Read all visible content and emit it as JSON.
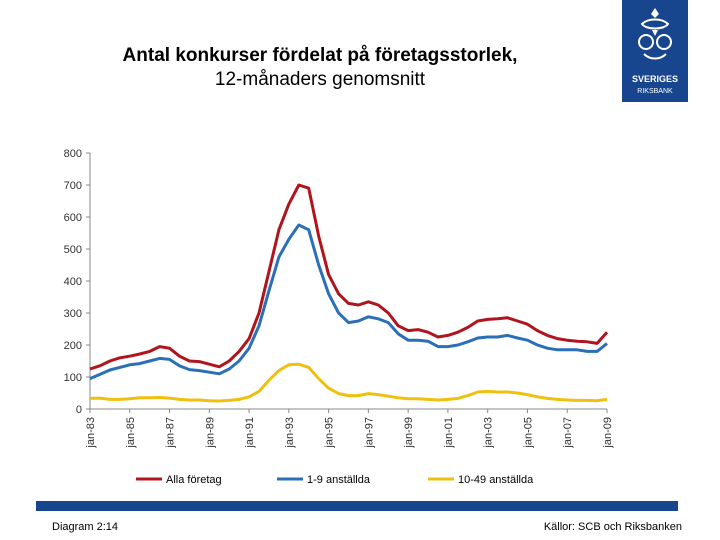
{
  "header": {
    "title": "Antal konkurser fördelat på företagsstorlek,",
    "subtitle": "12-månaders genomsnitt"
  },
  "logo": {
    "line1": "SVERIGES",
    "line2": "RIKSBANK"
  },
  "footer": {
    "left": "Diagram 2:14",
    "right": "Källor: SCB och Riksbanken"
  },
  "colors": {
    "brand": "#17468f"
  },
  "chart_data": {
    "type": "line",
    "x": [
      1983.0,
      1983.5,
      1984.0,
      1984.5,
      1985.0,
      1985.5,
      1986.0,
      1986.5,
      1987.0,
      1987.5,
      1988.0,
      1988.5,
      1989.0,
      1989.5,
      1990.0,
      1990.5,
      1991.0,
      1991.5,
      1992.0,
      1992.5,
      1993.0,
      1993.5,
      1994.0,
      1994.5,
      1995.0,
      1995.5,
      1996.0,
      1996.5,
      1997.0,
      1997.5,
      1998.0,
      1998.5,
      1999.0,
      1999.5,
      2000.0,
      2000.5,
      2001.0,
      2001.5,
      2002.0,
      2002.5,
      2003.0,
      2003.5,
      2004.0,
      2004.5,
      2005.0,
      2005.5,
      2006.0,
      2006.5,
      2007.0,
      2007.5,
      2008.0,
      2008.5,
      2009.0
    ],
    "xticks": [
      "jan-83",
      "jan-85",
      "jan-87",
      "jan-89",
      "jan-91",
      "jan-93",
      "jan-95",
      "jan-97",
      "jan-99",
      "jan-01",
      "jan-03",
      "jan-05",
      "jan-07",
      "jan-09"
    ],
    "xlim": [
      1983,
      2009
    ],
    "ylim": [
      0,
      800
    ],
    "yticks": [
      0,
      100,
      200,
      300,
      400,
      500,
      600,
      700,
      800
    ],
    "legend": "bottom",
    "series": [
      {
        "name": "Alla företag",
        "color": "#b0141d",
        "values": [
          125,
          135,
          150,
          160,
          165,
          172,
          180,
          195,
          190,
          165,
          150,
          148,
          140,
          132,
          150,
          180,
          220,
          300,
          430,
          560,
          640,
          700,
          690,
          540,
          420,
          360,
          330,
          325,
          335,
          325,
          300,
          260,
          245,
          248,
          240,
          225,
          230,
          240,
          255,
          275,
          280,
          282,
          285,
          275,
          265,
          245,
          230,
          220,
          215,
          212,
          210,
          205,
          240
        ]
      },
      {
        "name": "1-9 anställda",
        "color": "#2a6fb8",
        "values": [
          95,
          108,
          122,
          130,
          138,
          142,
          150,
          158,
          155,
          135,
          123,
          120,
          115,
          110,
          125,
          150,
          190,
          260,
          370,
          475,
          530,
          575,
          560,
          450,
          360,
          300,
          270,
          275,
          288,
          282,
          270,
          235,
          215,
          215,
          212,
          195,
          195,
          200,
          210,
          222,
          225,
          225,
          230,
          222,
          215,
          200,
          190,
          185,
          185,
          185,
          180,
          180,
          205
        ]
      },
      {
        "name": "10-49 anställda",
        "color": "#f0c010",
        "values": [
          33,
          34,
          30,
          30,
          32,
          35,
          35,
          36,
          34,
          30,
          28,
          28,
          26,
          25,
          27,
          30,
          38,
          55,
          90,
          120,
          138,
          140,
          130,
          95,
          65,
          48,
          42,
          42,
          48,
          45,
          40,
          35,
          32,
          32,
          30,
          28,
          30,
          33,
          42,
          53,
          55,
          53,
          53,
          50,
          45,
          38,
          33,
          30,
          28,
          27,
          27,
          26,
          30
        ]
      }
    ]
  }
}
